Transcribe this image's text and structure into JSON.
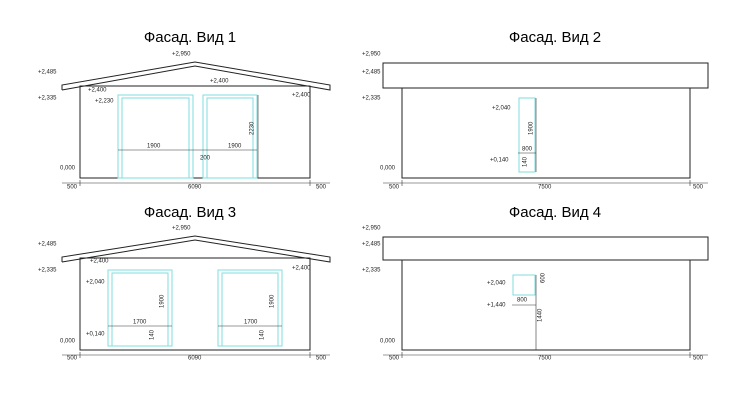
{
  "views": [
    {
      "title": "Фасад. Вид 1",
      "labels": [
        "+2,950",
        "+2,485",
        "+2,400",
        "+2,230",
        "+2,335",
        "+2,400",
        "+2,400",
        "0,000",
        "1900",
        "200",
        "1900",
        "2230",
        "500",
        "6090",
        "500"
      ]
    },
    {
      "title": "Фасад. Вид 2",
      "labels": [
        "+2,950",
        "+2,485",
        "+2,335",
        "+2,040",
        "1900",
        "800",
        "+0,140",
        "140",
        "0,000",
        "500",
        "7500",
        "500"
      ]
    },
    {
      "title": "Фасад. Вид 3",
      "labels": [
        "+2,950",
        "+2,485",
        "+2,400",
        "+2,040",
        "+2,335",
        "+2,400",
        "1900",
        "1900",
        "1700",
        "1700",
        "+0,140",
        "140",
        "140",
        "0,000",
        "500",
        "6090",
        "500"
      ]
    },
    {
      "title": "Фасад. Вид 4",
      "labels": [
        "+2,950",
        "+2,485",
        "+2,335",
        "+2,040",
        "600",
        "800",
        "+1,440",
        "1440",
        "0,000",
        "500",
        "7500",
        "500"
      ]
    }
  ]
}
